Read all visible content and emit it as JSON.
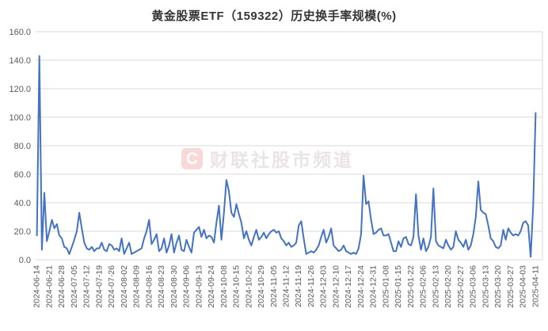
{
  "title": "黄金股票ETF（159322）历史换手率规模(%)",
  "watermark": {
    "logo_letter": "C",
    "text": "财联社股市频道"
  },
  "colors": {
    "line": "#4472C4",
    "grid": "#D9D9D9",
    "axis_text": "#595959",
    "title_text": "#353535",
    "watermark_badge": "#F8D9D7",
    "watermark_letter": "#FFFFFF",
    "watermark_text": "#EAE5E4",
    "background": "#FFFFFF"
  },
  "chart_data": {
    "type": "line",
    "title": "黄金股票ETF（159322）历史换手率规模(%)",
    "xlabel": "",
    "ylabel": "",
    "ylim": [
      0,
      160
    ],
    "y_ticks": [
      "0.0",
      "20.0",
      "40.0",
      "60.0",
      "80.0",
      "100.0",
      "120.0",
      "140.0",
      "160.0"
    ],
    "grid": "horizontal",
    "legend": "none",
    "x_tick_every": 5,
    "x_tick_labels": [
      "2024-06-14",
      "2024-06-21",
      "2024-06-28",
      "2024-07-05",
      "2024-07-12",
      "2024-07-19",
      "2024-07-26",
      "2024-08-02",
      "2024-08-09",
      "2024-08-16",
      "2024-08-23",
      "2024-08-30",
      "2024-09-06",
      "2024-09-13",
      "2024-09-24",
      "2024-10-08",
      "2024-10-15",
      "2024-10-22",
      "2024-10-29",
      "2024-11-05",
      "2024-11-12",
      "2024-11-19",
      "2024-11-26",
      "2024-12-03",
      "2024-12-10",
      "2024-12-17",
      "2024-12-24",
      "2024-12-31",
      "2025-01-08",
      "2025-01-15",
      "2025-01-22",
      "2025-02-06",
      "2025-02-13",
      "2025-02-20",
      "2025-02-27",
      "2025-03-06",
      "2025-03-13",
      "2025-03-20",
      "2025-03-27",
      "2025-04-03",
      "2025-04-11"
    ],
    "series": [
      {
        "name": "历史换手率(%)",
        "values": [
          17,
          143,
          7,
          47,
          13,
          20,
          28,
          22,
          25,
          17,
          15,
          9,
          8,
          4,
          9,
          14,
          20,
          33,
          22,
          12,
          8,
          7,
          9,
          6,
          8,
          8,
          12,
          7,
          6,
          11,
          10,
          7,
          8,
          6,
          15,
          4,
          8,
          12,
          4,
          5,
          6,
          7,
          8,
          15,
          20,
          28,
          11,
          14,
          18,
          6,
          8,
          15,
          5,
          10,
          18,
          5,
          12,
          17,
          7,
          6,
          14,
          9,
          5,
          19,
          21,
          23,
          16,
          21,
          15,
          17,
          16,
          12,
          26,
          38,
          14,
          33,
          56,
          48,
          33,
          30,
          39,
          32,
          26,
          15,
          20,
          14,
          10,
          16,
          21,
          14,
          16,
          19,
          15,
          18,
          20,
          21,
          19,
          20,
          15,
          13,
          10,
          12,
          9,
          10,
          12,
          24,
          27,
          15,
          4,
          5,
          6,
          5,
          7,
          10,
          16,
          21,
          12,
          16,
          22,
          10,
          8,
          6,
          7,
          10,
          6,
          5,
          4,
          5,
          4,
          8,
          18,
          59,
          39,
          41,
          28,
          18,
          19,
          21,
          22,
          17,
          17,
          18,
          12,
          6,
          6,
          13,
          9,
          15,
          16,
          11,
          10,
          16,
          46,
          17,
          7,
          15,
          6,
          9,
          16,
          50,
          13,
          10,
          9,
          8,
          14,
          10,
          7,
          9,
          20,
          14,
          12,
          9,
          14,
          7,
          10,
          18,
          30,
          55,
          35,
          33,
          32,
          24,
          15,
          13,
          9,
          8,
          10,
          21,
          14,
          22,
          19,
          17,
          18,
          17,
          20,
          26,
          27,
          24,
          2,
          38,
          103
        ]
      }
    ]
  }
}
